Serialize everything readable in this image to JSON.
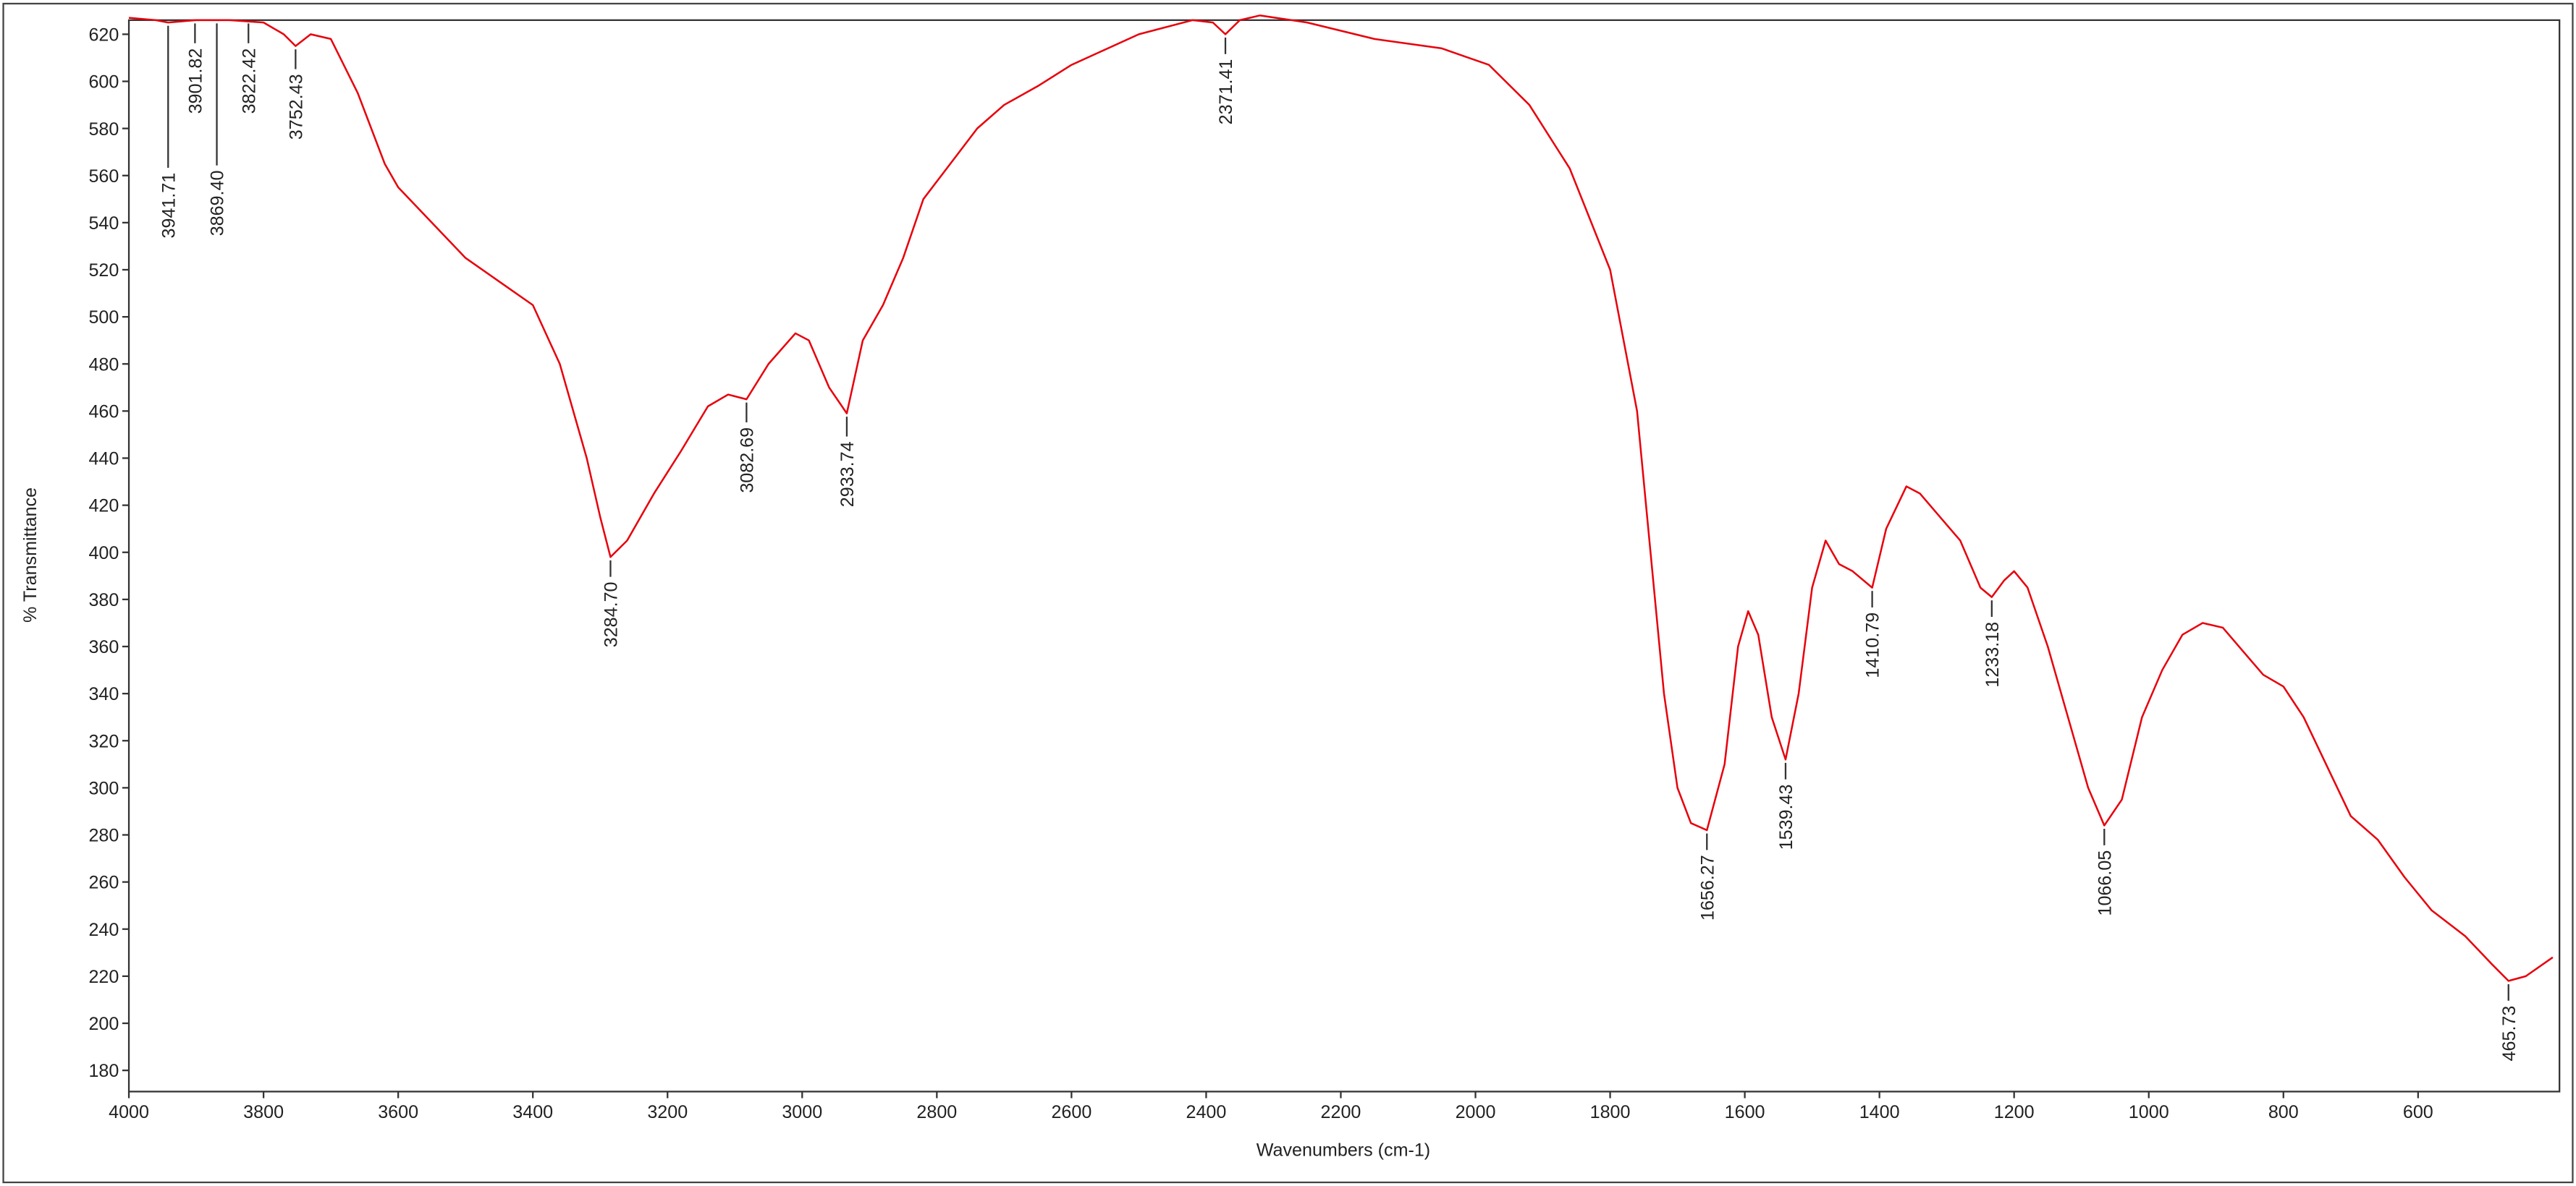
{
  "chart_data": {
    "type": "line",
    "xlabel": "Wavenumbers (cm-1)",
    "ylabel": "% Transmittance",
    "xlim": [
      4000,
      390
    ],
    "ylim": [
      171,
      626
    ],
    "xticks": [
      4000,
      3800,
      3600,
      3400,
      3200,
      3000,
      2800,
      2600,
      2400,
      2200,
      2000,
      1800,
      1600,
      1400,
      1200,
      1000,
      800,
      600
    ],
    "yticks": [
      180,
      200,
      220,
      240,
      260,
      280,
      300,
      320,
      340,
      360,
      380,
      400,
      420,
      440,
      460,
      480,
      500,
      520,
      540,
      560,
      580,
      600,
      620
    ],
    "grid": false,
    "series": [
      {
        "color": "#e8000b",
        "x": [
          4000,
          3960,
          3941.71,
          3900,
          3850,
          3800,
          3770,
          3752.43,
          3730,
          3700,
          3660,
          3620,
          3600,
          3550,
          3500,
          3450,
          3400,
          3360,
          3320,
          3300,
          3284.7,
          3260,
          3220,
          3180,
          3140,
          3110,
          3082.69,
          3050,
          3010,
          2990,
          2960,
          2933.74,
          2910,
          2880,
          2850,
          2820,
          2780,
          2740,
          2700,
          2650,
          2600,
          2500,
          2420,
          2390,
          2371.41,
          2350,
          2320,
          2250,
          2150,
          2050,
          1980,
          1920,
          1860,
          1800,
          1760,
          1740,
          1720,
          1700,
          1680,
          1656.27,
          1630,
          1610,
          1595,
          1580,
          1560,
          1539.43,
          1520,
          1500,
          1480,
          1460,
          1440,
          1410.79,
          1390,
          1360,
          1340,
          1310,
          1280,
          1250,
          1233.18,
          1215,
          1200,
          1180,
          1150,
          1120,
          1090,
          1066.05,
          1040,
          1010,
          980,
          950,
          920,
          890,
          860,
          830,
          800,
          770,
          740,
          700,
          660,
          620,
          580,
          530,
          490,
          465.73,
          440,
          400
        ],
        "values": [
          627,
          626,
          625,
          626,
          626,
          625,
          620,
          615,
          620,
          618,
          595,
          565,
          555,
          540,
          525,
          515,
          505,
          480,
          440,
          415,
          398,
          405,
          425,
          443,
          462,
          467,
          465,
          480,
          493,
          490,
          470,
          459,
          490,
          505,
          525,
          550,
          565,
          580,
          590,
          598,
          607,
          620,
          626,
          625,
          620,
          626,
          628,
          625,
          618,
          614,
          607,
          590,
          563,
          520,
          460,
          400,
          340,
          300,
          285,
          282,
          310,
          360,
          375,
          365,
          330,
          312,
          340,
          385,
          405,
          395,
          392,
          385,
          410,
          428,
          425,
          415,
          405,
          385,
          381,
          388,
          392,
          385,
          360,
          330,
          300,
          284,
          295,
          330,
          350,
          365,
          370,
          368,
          358,
          348,
          343,
          330,
          312,
          288,
          278,
          262,
          248,
          237,
          225,
          218,
          220,
          228
        ]
      }
    ],
    "peaks": [
      {
        "value": 3941.71,
        "label": "3941.71",
        "y": 625
      },
      {
        "value": 3901.82,
        "label": "3901.82",
        "y": 626
      },
      {
        "value": 3869.4,
        "label": "3869.40",
        "y": 626
      },
      {
        "value": 3822.42,
        "label": "3822.42",
        "y": 626
      },
      {
        "value": 3752.43,
        "label": "3752.43",
        "y": 615
      },
      {
        "value": 3284.7,
        "label": "3284.70",
        "y": 398
      },
      {
        "value": 3082.69,
        "label": "3082.69",
        "y": 465
      },
      {
        "value": 2933.74,
        "label": "2933.74",
        "y": 459
      },
      {
        "value": 2371.41,
        "label": "2371.41",
        "y": 620
      },
      {
        "value": 1656.27,
        "label": "1656.27",
        "y": 282
      },
      {
        "value": 1539.43,
        "label": "1539.43",
        "y": 312
      },
      {
        "value": 1410.79,
        "label": "1410.79",
        "y": 385
      },
      {
        "value": 1233.18,
        "label": "1233.18",
        "y": 381
      },
      {
        "value": 1066.05,
        "label": "1066.05",
        "y": 284
      },
      {
        "value": 465.73,
        "label": "465.73",
        "y": 218
      }
    ]
  }
}
